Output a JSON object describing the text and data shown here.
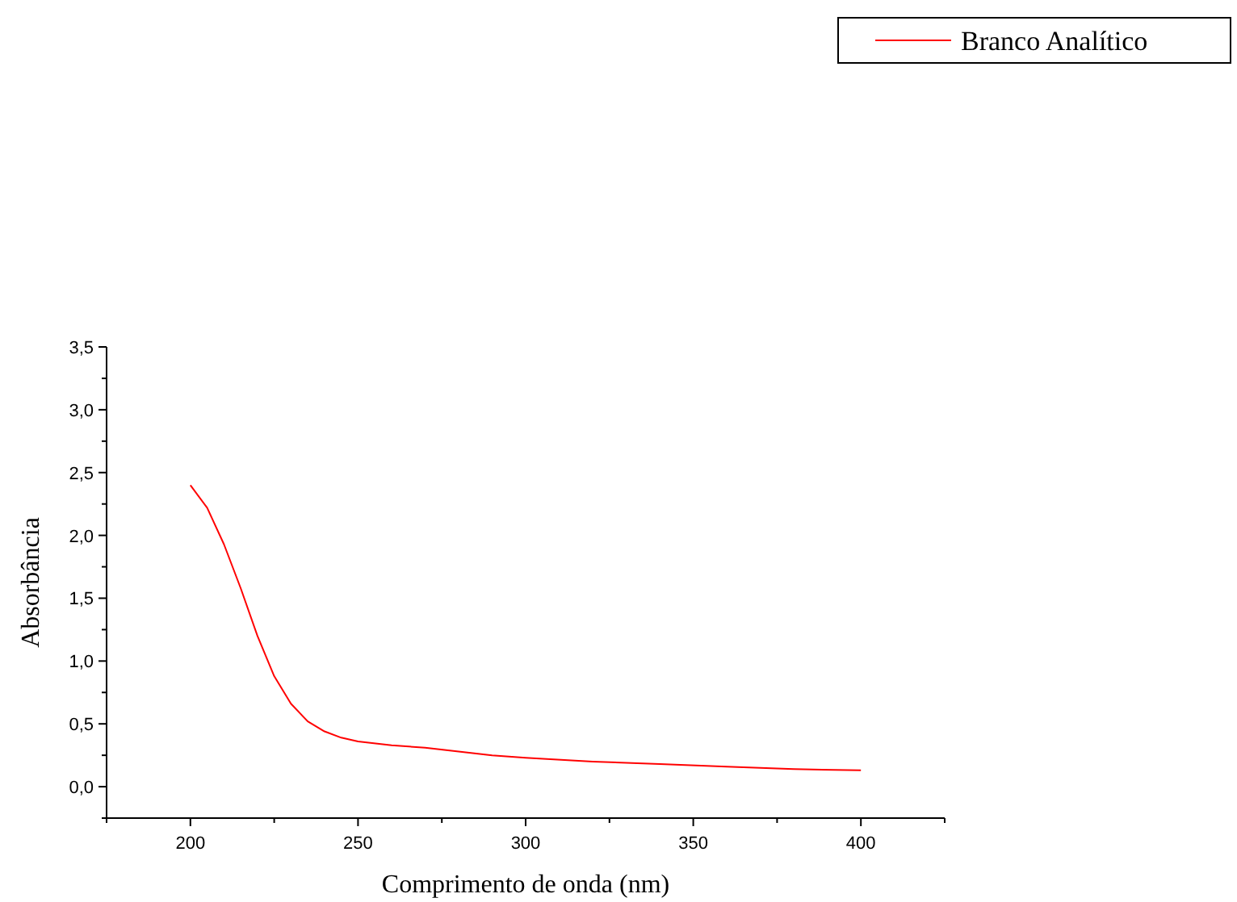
{
  "chart_data": {
    "type": "line",
    "xlabel": "Comprimento de onda (nm)",
    "ylabel": "Absorbância",
    "legend": "top right",
    "xlim": [
      175,
      425
    ],
    "xticks": [
      {
        "value": 175,
        "label": null
      },
      200,
      {
        "value": 225,
        "label": null
      },
      250,
      {
        "value": 275,
        "label": null
      },
      300,
      {
        "value": 325,
        "label": null
      },
      350,
      {
        "value": 375,
        "label": null
      },
      400,
      {
        "value": 425,
        "label": null
      }
    ],
    "ylim": [
      -0.25,
      3.5
    ],
    "yticks": [
      {
        "value": -0.25,
        "label": null
      },
      {
        "value": 0,
        "label": "0,0"
      },
      {
        "value": 0.25,
        "label": null
      },
      {
        "value": 0.5,
        "label": "0,5"
      },
      {
        "value": 0.75,
        "label": null
      },
      {
        "value": 1,
        "label": "1,0"
      },
      {
        "value": 1.25,
        "label": null
      },
      {
        "value": 1.5,
        "label": "1,5"
      },
      {
        "value": 1.75,
        "label": null
      },
      {
        "value": 2,
        "label": "2,0"
      },
      {
        "value": 2.25,
        "label": null
      },
      {
        "value": 2.5,
        "label": "2,5"
      },
      {
        "value": 2.75,
        "label": null
      },
      {
        "value": 3,
        "label": "3,0"
      },
      {
        "value": 3.25,
        "label": null
      },
      {
        "value": 3.5,
        "label": "3,5"
      }
    ],
    "series": [
      {
        "name": "Branco Analítico",
        "color": "#ff0000",
        "x": [
          200,
          205,
          210,
          215,
          220,
          225,
          230,
          235,
          240,
          245,
          250,
          260,
          270,
          280,
          290,
          300,
          320,
          340,
          360,
          380,
          400
        ],
        "values": [
          2.4,
          2.22,
          1.93,
          1.58,
          1.2,
          0.88,
          0.66,
          0.52,
          0.44,
          0.39,
          0.36,
          0.33,
          0.31,
          0.28,
          0.25,
          0.23,
          0.2,
          0.18,
          0.16,
          0.14,
          0.13
        ]
      }
    ]
  }
}
